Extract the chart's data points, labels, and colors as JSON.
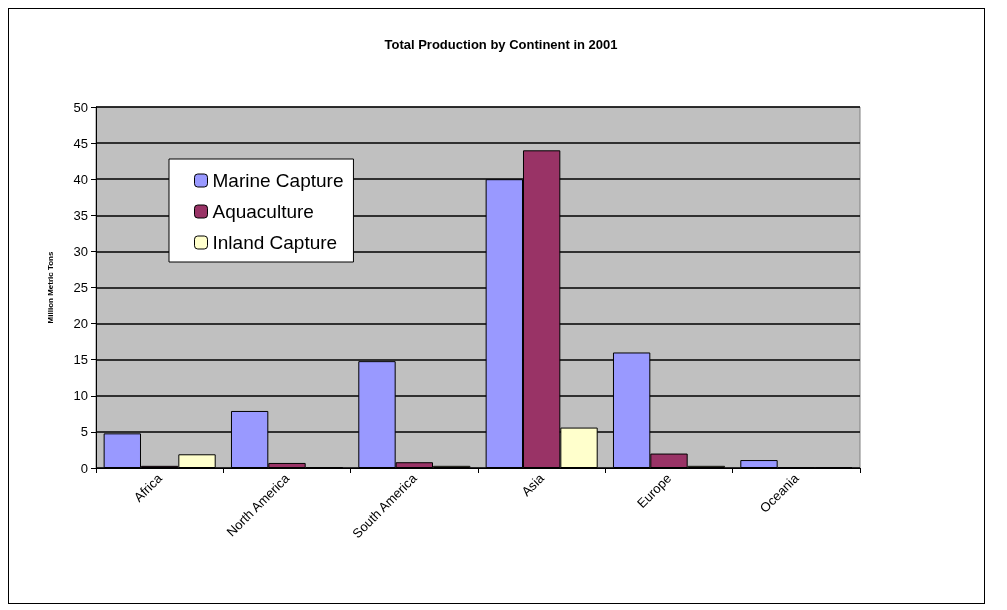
{
  "chart_data": {
    "type": "bar",
    "title": "Total Production by Continent in 2001",
    "ylabel": "Million Metric Tons",
    "categories": [
      "Africa",
      "North America",
      "South America",
      "Asia",
      "Europe",
      "Oceania"
    ],
    "series": [
      {
        "name": "Marine Capture",
        "color": "#9999ff",
        "values": [
          4.8,
          7.9,
          14.8,
          40,
          16,
          1.1
        ]
      },
      {
        "name": "Aquaculture",
        "color": "#993366",
        "values": [
          0.3,
          0.7,
          0.8,
          44,
          2,
          0.1
        ]
      },
      {
        "name": "Inland Capture",
        "color": "#ffffcc",
        "values": [
          1.9,
          0.1,
          0.3,
          5.6,
          0.3,
          0.1
        ]
      }
    ],
    "ylim": [
      0,
      50
    ],
    "yticks": [
      0,
      5,
      10,
      15,
      20,
      25,
      30,
      35,
      40,
      45,
      50
    ],
    "grid": "y",
    "legend": "top left"
  }
}
